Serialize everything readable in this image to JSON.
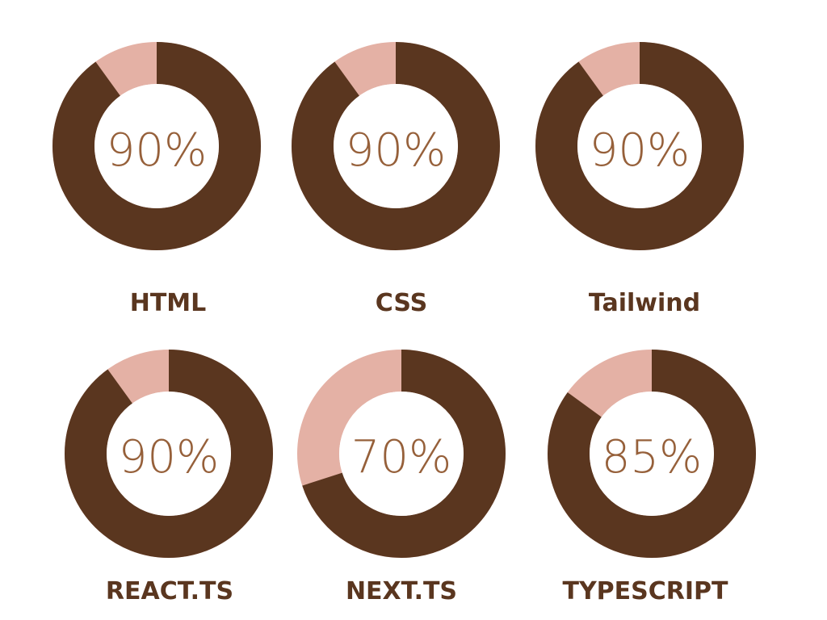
{
  "colors": {
    "filled": "#5a361f",
    "remaining": "#e4b1a5",
    "percent_text": "#96603a",
    "label_text": "#5a361f",
    "center": "#ffffff"
  },
  "chart_data": {
    "type": "pie",
    "variant": "donut",
    "unit": "%",
    "max": 100,
    "items": [
      {
        "name": "HTML",
        "value": 90,
        "label": "90%"
      },
      {
        "name": "CSS",
        "value": 90,
        "label": "90%"
      },
      {
        "name": "Tailwind",
        "value": 90,
        "label": "90%"
      },
      {
        "name": "REACT.TS",
        "value": 90,
        "label": "90%"
      },
      {
        "name": "NEXT.TS",
        "value": 70,
        "label": "70%"
      },
      {
        "name": "TYPESCRIPT",
        "value": 85,
        "label": "85%"
      }
    ]
  }
}
